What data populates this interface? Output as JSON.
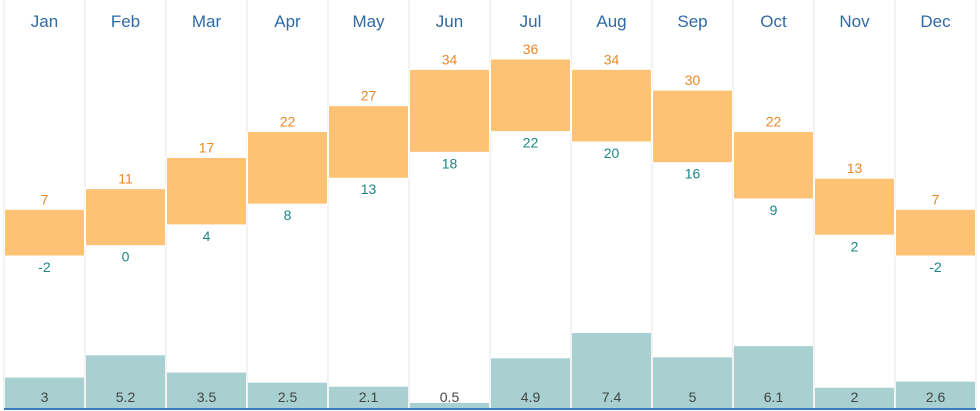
{
  "chart_data": {
    "type": "bar",
    "categories": [
      "Jan",
      "Feb",
      "Mar",
      "Apr",
      "May",
      "Jun",
      "Jul",
      "Aug",
      "Sep",
      "Oct",
      "Nov",
      "Dec"
    ],
    "series": [
      {
        "values_high": [
          7,
          11,
          17,
          22,
          27,
          34,
          36,
          34,
          30,
          22,
          13,
          7
        ],
        "values_low": [
          -2,
          0,
          4,
          8,
          13,
          18,
          22,
          20,
          16,
          9,
          2,
          -2
        ]
      },
      {
        "values": [
          3,
          5.2,
          3.5,
          2.5,
          2.1,
          0.5,
          4.9,
          7.4,
          5,
          6.1,
          2,
          2.6
        ]
      }
    ],
    "temp_scale": {
      "min": -2,
      "max": 36
    },
    "precip_scale": {
      "max": 7.4
    },
    "title": "",
    "xlabel": "",
    "ylabel": "",
    "grid": true,
    "colors": {
      "temp_bar": "#fdc274",
      "temp_bar_stroke": "#ffffff",
      "high_label": "#e8892a",
      "low_label": "#1e8585",
      "precip_bar": "#a8d0d0",
      "precip_label": "#444444",
      "month_label": "#2e6aa5",
      "grid": "#e6e6e6",
      "baseline": "#3a7bbf"
    }
  }
}
